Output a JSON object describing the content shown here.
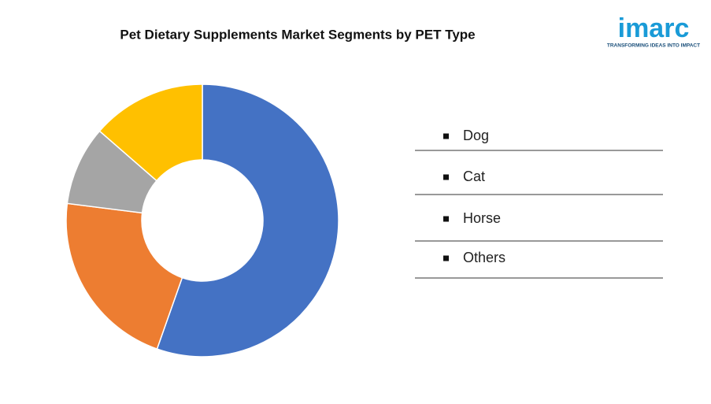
{
  "chart_data": {
    "type": "donut",
    "title": "Pet Dietary Supplements Market Segments by PET Type",
    "categories": [
      "Dog",
      "Cat",
      "Horse",
      "Others"
    ],
    "values": [
      55.4,
      21.6,
      9.4,
      13.6
    ],
    "colors": [
      "#4472c4",
      "#ed7d31",
      "#a5a5a5",
      "#ffc000"
    ],
    "legend": "right"
  },
  "logo": {
    "name": "imarc",
    "tagline": "TRANSFORMING IDEAS INTO IMPACT"
  }
}
